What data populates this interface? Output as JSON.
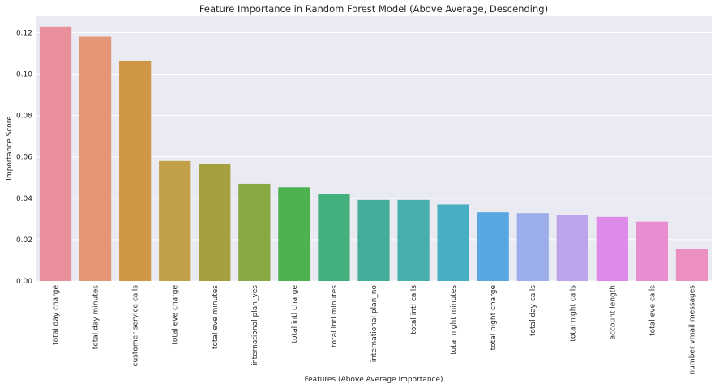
{
  "chart_data": {
    "type": "bar",
    "title": "Feature Importance in Random Forest Model (Above Average, Descending)",
    "xlabel": "Features (Above Average Importance)",
    "ylabel": "Importance Score",
    "ylim": [
      0,
      0.128
    ],
    "yticks": [
      "0.00",
      "0.02",
      "0.04",
      "0.06",
      "0.08",
      "0.10",
      "0.12"
    ],
    "grid": true,
    "legend": "none",
    "categories": [
      "total day charge",
      "total day minutes",
      "customer service calls",
      "total eve charge",
      "total eve minutes",
      "international plan_yes",
      "total intl charge",
      "total intl minutes",
      "international plan_no",
      "total intl calls",
      "total night minutes",
      "total night charge",
      "total day calls",
      "total night calls",
      "account length",
      "total eve calls",
      "number vmail messages"
    ],
    "values": [
      0.123,
      0.118,
      0.1065,
      0.058,
      0.0565,
      0.047,
      0.0453,
      0.0422,
      0.0392,
      0.0392,
      0.037,
      0.0332,
      0.0328,
      0.0317,
      0.031,
      0.0287,
      0.0153
    ],
    "colors": [
      "#e9909c",
      "#e59677",
      "#cf9645",
      "#c2a04a",
      "#a4a03f",
      "#86a944",
      "#4cb250",
      "#44b07d",
      "#45ae9a",
      "#46aeac",
      "#48aec2",
      "#57a8e0",
      "#9baee9",
      "#bda3ec",
      "#dd8ae8",
      "#e98cd1",
      "#ec8fc1"
    ],
    "background_color": "#eaeaf2",
    "grid_color": "#ffffff"
  }
}
